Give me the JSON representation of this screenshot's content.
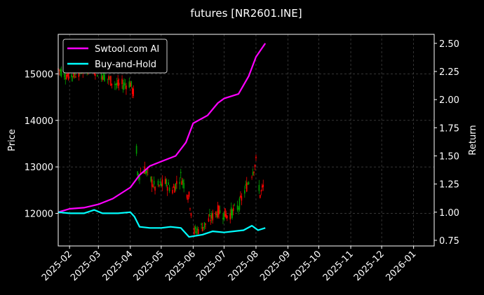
{
  "chart_data": {
    "type": "line",
    "title": "futures [NR2601.INE]",
    "background": "#000000",
    "grid": true,
    "xlabel": "",
    "ylabel_left": "Price",
    "ylabel_right": "Return",
    "x_tick_labels": [
      "2025-02",
      "2025-03",
      "2025-04",
      "2025-05",
      "2025-06",
      "2025-07",
      "2025-08",
      "2025-09",
      "2025-10",
      "2025-11",
      "2025-12",
      "2026-01"
    ],
    "x_range": [
      "2025-01-21",
      "2026-01-21"
    ],
    "ylim_left": [
      11300,
      15850
    ],
    "y_ticks_left": [
      12000,
      13000,
      14000,
      15000
    ],
    "ylim_right": [
      0.7,
      2.58
    ],
    "y_ticks_right": [
      "0.75",
      "1.00",
      "1.25",
      "1.50",
      "1.75",
      "2.00",
      "2.25",
      "2.50"
    ],
    "legend": {
      "placement": "top-left",
      "entries": [
        {
          "label": "Swtool.com AI",
          "color": "#ff00ff"
        },
        {
          "label": "Buy-and-Hold",
          "color": "#00ffff"
        }
      ]
    },
    "candle_colors": {
      "up": "#ff0000",
      "down": "#00a000"
    },
    "series": [
      {
        "name": "Swtool.com AI",
        "axis": "right",
        "color": "#ff00ff",
        "points": [
          [
            "2025-01-21",
            1.0
          ],
          [
            "2025-02-01",
            1.03
          ],
          [
            "2025-02-15",
            1.04
          ],
          [
            "2025-03-01",
            1.07
          ],
          [
            "2025-03-15",
            1.12
          ],
          [
            "2025-04-01",
            1.22
          ],
          [
            "2025-04-10",
            1.33
          ],
          [
            "2025-04-20",
            1.41
          ],
          [
            "2025-05-01",
            1.45
          ],
          [
            "2025-05-15",
            1.5
          ],
          [
            "2025-05-25",
            1.62
          ],
          [
            "2025-06-01",
            1.79
          ],
          [
            "2025-06-15",
            1.86
          ],
          [
            "2025-06-25",
            1.97
          ],
          [
            "2025-07-01",
            2.01
          ],
          [
            "2025-07-15",
            2.05
          ],
          [
            "2025-07-25",
            2.21
          ],
          [
            "2025-08-01",
            2.38
          ],
          [
            "2025-08-10",
            2.5
          ]
        ]
      },
      {
        "name": "Buy-and-Hold",
        "axis": "right",
        "color": "#00ffff",
        "points": [
          [
            "2025-01-21",
            1.0
          ],
          [
            "2025-02-01",
            0.99
          ],
          [
            "2025-02-15",
            0.99
          ],
          [
            "2025-02-25",
            1.02
          ],
          [
            "2025-03-05",
            0.99
          ],
          [
            "2025-03-20",
            0.99
          ],
          [
            "2025-04-01",
            1.0
          ],
          [
            "2025-04-05",
            0.96
          ],
          [
            "2025-04-10",
            0.87
          ],
          [
            "2025-04-20",
            0.86
          ],
          [
            "2025-05-01",
            0.86
          ],
          [
            "2025-05-10",
            0.87
          ],
          [
            "2025-05-20",
            0.86
          ],
          [
            "2025-05-28",
            0.78
          ],
          [
            "2025-06-10",
            0.8
          ],
          [
            "2025-06-20",
            0.83
          ],
          [
            "2025-07-01",
            0.82
          ],
          [
            "2025-07-20",
            0.84
          ],
          [
            "2025-07-28",
            0.88
          ],
          [
            "2025-08-03",
            0.84
          ],
          [
            "2025-08-10",
            0.86
          ]
        ]
      }
    ],
    "price_path": [
      [
        "2025-01-21",
        15100
      ],
      [
        "2025-02-01",
        14950
      ],
      [
        "2025-02-10",
        15050
      ],
      [
        "2025-02-20",
        15150
      ],
      [
        "2025-03-01",
        15050
      ],
      [
        "2025-03-10",
        14900
      ],
      [
        "2025-03-20",
        14750
      ],
      [
        "2025-04-01",
        14800
      ],
      [
        "2025-04-05",
        14500
      ],
      [
        "2025-04-08",
        12800
      ],
      [
        "2025-04-15",
        12950
      ],
      [
        "2025-04-25",
        12550
      ],
      [
        "2025-05-05",
        12650
      ],
      [
        "2025-05-12",
        12500
      ],
      [
        "2025-05-20",
        12800
      ],
      [
        "2025-05-28",
        12350
      ],
      [
        "2025-06-02",
        11600
      ],
      [
        "2025-06-12",
        11750
      ],
      [
        "2025-06-25",
        12050
      ],
      [
        "2025-07-05",
        11950
      ],
      [
        "2025-07-15",
        12150
      ],
      [
        "2025-07-25",
        12700
      ],
      [
        "2025-08-01",
        13100
      ],
      [
        "2025-08-05",
        12400
      ],
      [
        "2025-08-10",
        12650
      ]
    ]
  }
}
